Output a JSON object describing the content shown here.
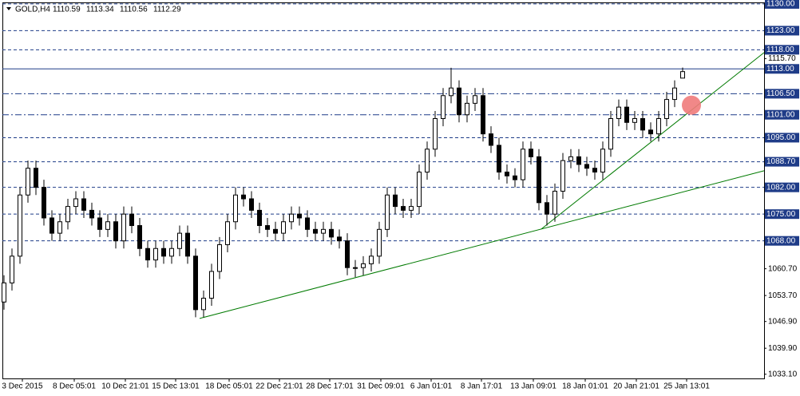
{
  "chart_data": {
    "type": "candlestick",
    "title": "GOLD,H4",
    "up_color": "#ffffff",
    "down_color": "#000000",
    "open": [
      1052,
      1057,
      1064,
      1080,
      1087,
      1082,
      1074,
      1070,
      1073,
      1077,
      1079,
      1076,
      1074,
      1071,
      1073,
      1068,
      1075,
      1072,
      1066,
      1063,
      1066,
      1064,
      1066,
      1070,
      1064,
      1050,
      1053,
      1060,
      1067,
      1073,
      1080,
      1079,
      1076,
      1072,
      1071,
      1070,
      1073,
      1075,
      1074,
      1071,
      1070,
      1071,
      1069,
      1068,
      1061,
      1061,
      1062,
      1064,
      1071,
      1080,
      1077,
      1076,
      1077,
      1086,
      1092,
      1100,
      1106,
      1108,
      1101,
      1104,
      1106,
      1096,
      1093,
      1086,
      1085,
      1084,
      1092,
      1090,
      1078,
      1075,
      1081,
      1089,
      1090,
      1088,
      1087,
      1086,
      1092,
      1100,
      1103,
      1099,
      1100,
      1097,
      1096,
      1100,
      1105,
      1110.59
    ],
    "high": [
      1059,
      1066,
      1082,
      1089,
      1089,
      1084,
      1076,
      1075,
      1079,
      1081,
      1081,
      1078,
      1076,
      1075,
      1075,
      1077,
      1077,
      1074,
      1068,
      1068,
      1068,
      1068,
      1072,
      1072,
      1066,
      1055,
      1062,
      1069,
      1075,
      1082,
      1082,
      1081,
      1078,
      1074,
      1073,
      1075,
      1077,
      1077,
      1076,
      1073,
      1073,
      1073,
      1071,
      1070,
      1063,
      1064,
      1066,
      1073,
      1082,
      1082,
      1079,
      1079,
      1088,
      1094,
      1102,
      1108,
      1113.3,
      1110,
      1106,
      1108,
      1108,
      1098,
      1095,
      1088,
      1087,
      1094,
      1094,
      1092,
      1080,
      1083,
      1091,
      1092,
      1092,
      1090,
      1089,
      1094,
      1102,
      1105,
      1105,
      1102,
      1102,
      1099,
      1102,
      1107,
      1110,
      1113.34
    ],
    "low": [
      1050,
      1055,
      1062,
      1078,
      1080,
      1072,
      1068,
      1068,
      1071,
      1075,
      1074,
      1072,
      1069,
      1069,
      1066,
      1066,
      1070,
      1064,
      1061,
      1061,
      1062,
      1062,
      1064,
      1062,
      1048,
      1048,
      1051,
      1058,
      1065,
      1071,
      1077,
      1074,
      1070,
      1069,
      1068,
      1068,
      1071,
      1072,
      1069,
      1068,
      1068,
      1067,
      1066,
      1059,
      1058.5,
      1059,
      1060,
      1062,
      1069,
      1075,
      1074,
      1074,
      1075,
      1084,
      1090,
      1098,
      1104,
      1099,
      1099,
      1102,
      1094,
      1091,
      1084,
      1083,
      1082,
      1082,
      1088,
      1076,
      1072,
      1073,
      1079,
      1087,
      1086,
      1085,
      1084,
      1084,
      1090,
      1098,
      1097,
      1097,
      1095,
      1094,
      1094,
      1098,
      1103,
      1110.56
    ],
    "close": [
      1057,
      1064,
      1080,
      1087,
      1082,
      1074,
      1070,
      1073,
      1077,
      1079,
      1076,
      1074,
      1071,
      1073,
      1068,
      1075,
      1072,
      1066,
      1063,
      1066,
      1064,
      1066,
      1070,
      1064,
      1050,
      1053,
      1060,
      1067,
      1073,
      1080,
      1079,
      1076,
      1072,
      1071,
      1070,
      1073,
      1075,
      1074,
      1071,
      1070,
      1071,
      1069,
      1068,
      1061,
      1061,
      1062,
      1064,
      1071,
      1080,
      1077,
      1076,
      1077,
      1086,
      1092,
      1100,
      1106,
      1108,
      1101,
      1104,
      1106,
      1096,
      1093,
      1086,
      1085,
      1084,
      1092,
      1090,
      1078,
      1075,
      1081,
      1089,
      1090,
      1088,
      1087,
      1086,
      1092,
      1100,
      1103,
      1099,
      1100,
      1097,
      1096,
      1100,
      1105,
      1108,
      1112.29
    ],
    "xlim": [
      -0.2,
      95.2
    ],
    "xticks": [
      {
        "value": 2.3,
        "label": "3 Dec 2015"
      },
      {
        "value": 8.8,
        "label": "8 Dec 05:01"
      },
      {
        "value": 15.2,
        "label": "10 Dec 21:01"
      },
      {
        "value": 21.5,
        "label": "15 Dec 13:01"
      },
      {
        "value": 28.2,
        "label": "18 Dec 05:01"
      },
      {
        "value": 34.5,
        "label": "22 Dec 21:01"
      },
      {
        "value": 40.8,
        "label": "28 Dec 17:01"
      },
      {
        "value": 47.2,
        "label": "31 Dec 09:01"
      },
      {
        "value": 53.5,
        "label": "6 Jan 01:01"
      },
      {
        "value": 59.8,
        "label": "8 Jan 17:01"
      },
      {
        "value": 66.3,
        "label": "13 Jan 09:01"
      },
      {
        "value": 72.8,
        "label": "18 Jan 01:01"
      },
      {
        "value": 79.2,
        "label": "20 Jan 21:01"
      },
      {
        "value": 85.5,
        "label": "25 Jan 13:01"
      }
    ],
    "ylim": [
      1032.0,
      1130.4
    ],
    "yticks": [
      {
        "value": 1115.7,
        "label": "1115.70"
      },
      {
        "value": 1060.7,
        "label": "1060.70"
      },
      {
        "value": 1053.7,
        "label": "1053.70"
      },
      {
        "value": 1046.9,
        "label": "1046.90"
      },
      {
        "value": 1039.9,
        "label": "1039.90"
      },
      {
        "value": 1033.1,
        "label": "1033.10"
      }
    ],
    "levels": [
      {
        "value": 1130,
        "label": "1130.00",
        "style": "dash"
      },
      {
        "value": 1123,
        "label": "1123.00",
        "style": "dash"
      },
      {
        "value": 1118,
        "label": "1118.00",
        "style": "dash"
      },
      {
        "value": 1113,
        "label": "1113.00",
        "style": "solid"
      },
      {
        "value": 1106.5,
        "label": "1106.50",
        "style": "dashdot"
      },
      {
        "value": 1101,
        "label": "1101.00",
        "style": "dashdot"
      },
      {
        "value": 1095,
        "label": "1095.00",
        "style": "dash"
      },
      {
        "value": 1088.7,
        "label": "1088.70",
        "style": "dash"
      },
      {
        "value": 1082,
        "label": "1082.00",
        "style": "dash"
      },
      {
        "value": 1075,
        "label": "1075.00",
        "style": "dash"
      },
      {
        "value": 1068,
        "label": "1068.00",
        "style": "dash"
      }
    ],
    "level_color": "#1f3c88",
    "trendlines": [
      {
        "x": [
          24.5,
          95.2
        ],
        "y": [
          1047.7,
          1086.35
        ],
        "color": "#007a00"
      },
      {
        "x": [
          67.3,
          95.2
        ],
        "y": [
          1071.1,
          1117.26
        ],
        "color": "#007a00"
      }
    ],
    "marker": {
      "x": 86.1,
      "y": 1103.5,
      "color": "#ef7b7b"
    }
  }
}
